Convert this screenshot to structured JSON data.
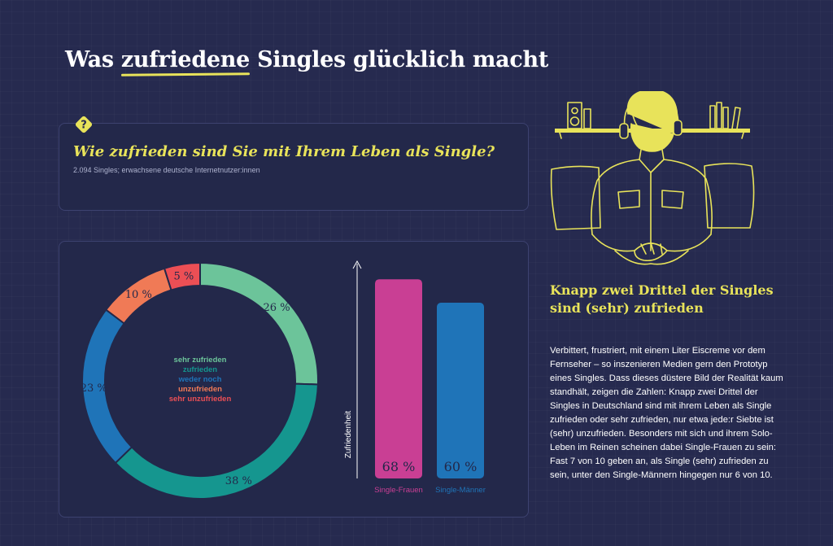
{
  "header": {
    "title_pre": "Was ",
    "title_mark": "zufriedene",
    "title_post": " Singles glücklich macht"
  },
  "question": {
    "badge": "?",
    "text": "Wie zufrieden sind Sie mit Ihrem Leben als Single?",
    "sample": "2.094 Singles; erwachsene deutsche Internetnutzer:innen"
  },
  "article": {
    "heading": "Knapp zwei Drittel der Singles sind (sehr) zufrieden",
    "body": "Verbittert, frustriert, mit einem Liter Eiscreme vor dem Fernseher – so inszenieren Medien gern den Prototyp eines Singles. Dass dieses düstere Bild der Realität kaum standhält, zeigen die Zahlen: Knapp zwei Drittel der Singles in Deutschland sind mit ihrem Leben als Single zufrieden oder sehr zufrieden, nur etwa jede:r Siebte ist (sehr) unzufrieden. Besonders mit sich und ihrem Solo-Leben im Reinen scheinen dabei Single-Frauen zu sein: Fast 7 von 10 geben an, als Single (sehr) zufrieden zu sein, unter den Single-Männern hingegen nur 6 von 10."
  },
  "colors": {
    "background": "#262a4f",
    "accent_yellow": "#e8e35a",
    "sehr_zufrieden": "#6cc49a",
    "zufrieden": "#15968f",
    "weder_noch": "#1f74b8",
    "unzufrieden": "#f07a56",
    "sehr_unzufrieden": "#ec4f55",
    "single_frauen": "#c93f94",
    "single_maenner": "#1f74b8"
  },
  "chart_data": [
    {
      "type": "pie",
      "variant": "donut",
      "categories": [
        "sehr zufrieden",
        "zufrieden",
        "weder noch",
        "unzufrieden",
        "sehr unzufrieden"
      ],
      "values": [
        26,
        38,
        23,
        10,
        5
      ],
      "labels": [
        "26 %",
        "38 %",
        "23 %",
        "10 %",
        "5 %"
      ],
      "unit": "%",
      "legend": "center"
    },
    {
      "type": "bar",
      "categories": [
        "Single-Frauen",
        "Single-Männer"
      ],
      "values": [
        68,
        60
      ],
      "labels": [
        "68 %",
        "60 %"
      ],
      "unit": "%",
      "ylabel": "Zufriedenheit",
      "ylim": [
        0,
        75
      ]
    }
  ]
}
